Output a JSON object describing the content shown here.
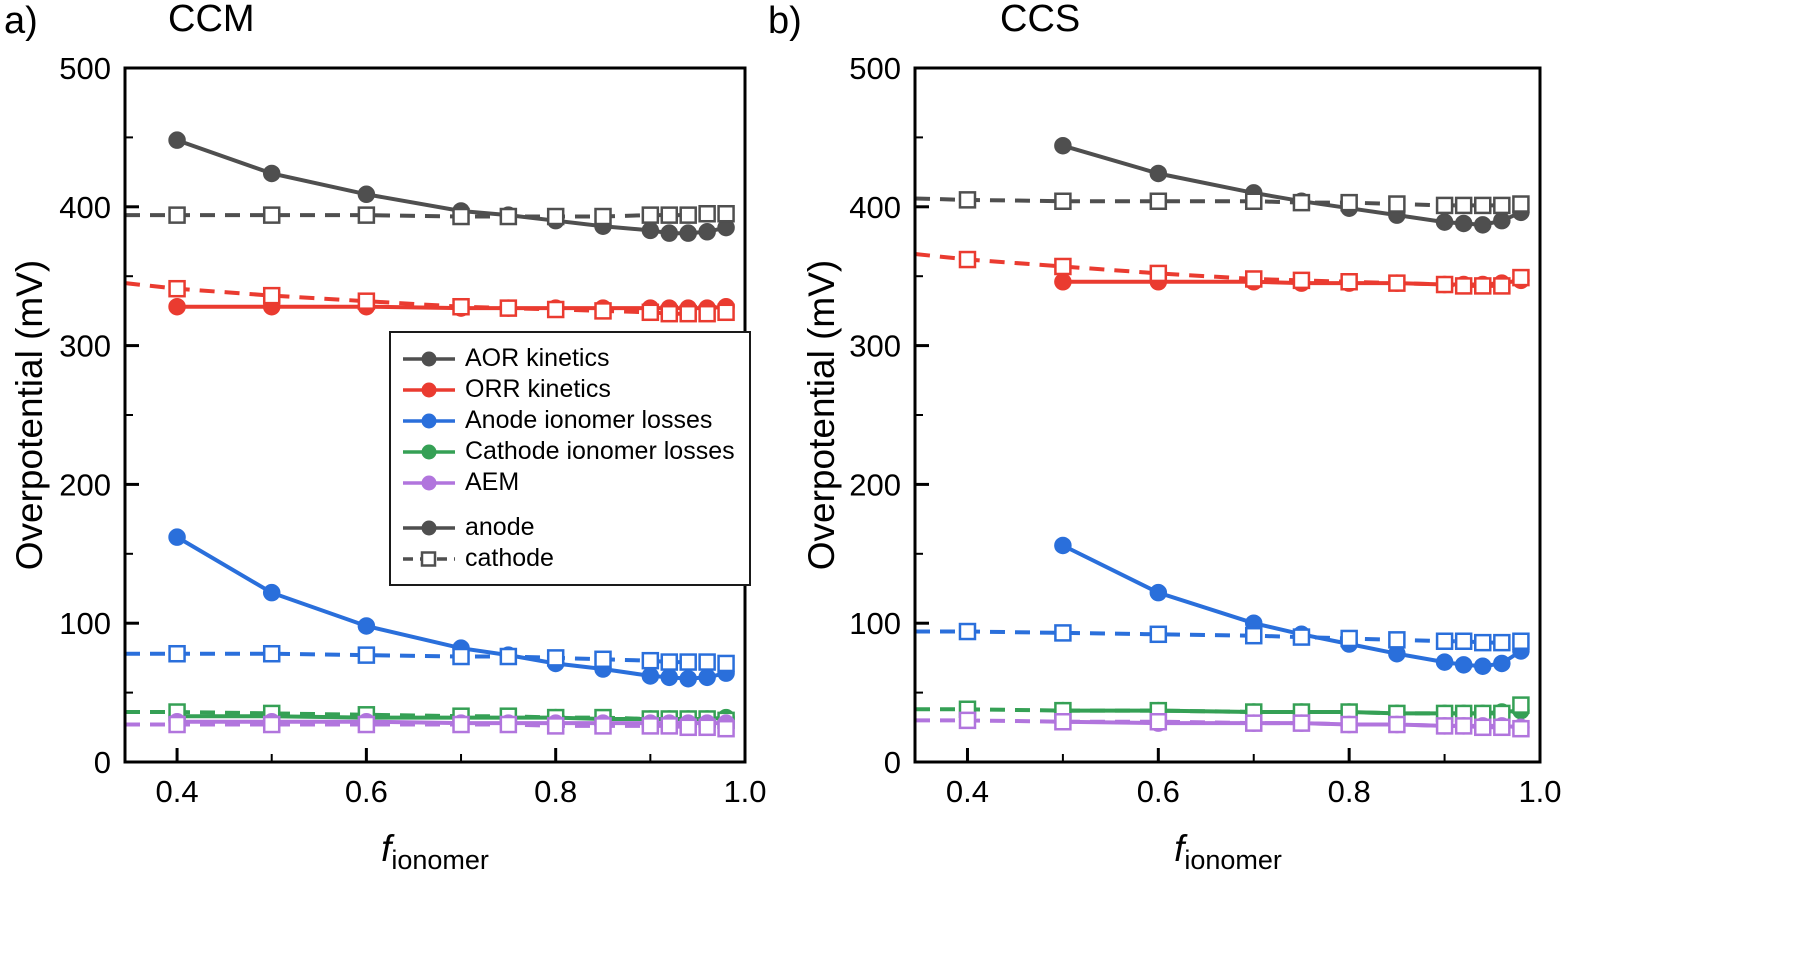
{
  "figure": {
    "background": "#ffffff",
    "panels": [
      {
        "corner_label": "a)",
        "title": "CCM"
      },
      {
        "corner_label": "b)",
        "title": "CCS"
      }
    ],
    "ylabel": "Overpotential (mV)",
    "xlabel_base": "f",
    "xlabel_sub": "ionomer"
  },
  "legend": {
    "components": [
      {
        "label": "AOR kinetics",
        "color": "#4f4f4f"
      },
      {
        "label": "ORR kinetics",
        "color": "#ea3b30"
      },
      {
        "label": "Anode ionomer losses",
        "color": "#2a6fdb"
      },
      {
        "label": "Cathode ionomer losses",
        "color": "#35a055"
      },
      {
        "label": "AEM",
        "color": "#b175dd"
      }
    ],
    "electrodes": [
      {
        "label": "anode",
        "marker": "filled-circle",
        "line": "solid",
        "color": "#4f4f4f"
      },
      {
        "label": "cathode",
        "marker": "open-square",
        "line": "dashed",
        "color": "#4f4f4f"
      }
    ]
  },
  "chart_data": [
    {
      "type": "line",
      "title": "CCM",
      "xlabel": "f_ionomer",
      "ylabel": "Overpotential (mV)",
      "xlim": [
        0.345,
        1.0
      ],
      "ylim": [
        0,
        500
      ],
      "x_major_ticks": [
        0.4,
        0.6,
        0.8,
        1.0
      ],
      "x_minor_ticks": [
        0.5,
        0.7,
        0.9
      ],
      "y_major_step": 100,
      "y_minor_step": 50,
      "series": [
        {
          "component": "AOR kinetics",
          "electrode": "anode",
          "color": "#4f4f4f",
          "line": "solid",
          "marker": "circle",
          "x": [
            0.4,
            0.5,
            0.6,
            0.7,
            0.75,
            0.8,
            0.85,
            0.9,
            0.92,
            0.94,
            0.96,
            0.98
          ],
          "y": [
            448,
            424,
            409,
            397,
            394,
            390,
            386,
            383,
            381,
            381,
            382,
            385
          ]
        },
        {
          "component": "AOR kinetics",
          "electrode": "cathode",
          "color": "#4f4f4f",
          "line": "dashed",
          "marker": "square",
          "edge_y": 394,
          "x": [
            0.4,
            0.5,
            0.6,
            0.7,
            0.75,
            0.8,
            0.85,
            0.9,
            0.92,
            0.94,
            0.96,
            0.98
          ],
          "y": [
            394,
            394,
            394,
            393,
            393,
            393,
            393,
            394,
            394,
            394,
            395,
            395
          ]
        },
        {
          "component": "ORR kinetics",
          "electrode": "anode",
          "color": "#ea3b30",
          "line": "solid",
          "marker": "circle",
          "x": [
            0.4,
            0.5,
            0.6,
            0.7,
            0.75,
            0.8,
            0.85,
            0.9,
            0.92,
            0.94,
            0.96,
            0.98
          ],
          "y": [
            328,
            328,
            328,
            327,
            327,
            327,
            327,
            327,
            327,
            327,
            327,
            328
          ]
        },
        {
          "component": "ORR kinetics",
          "electrode": "cathode",
          "color": "#ea3b30",
          "line": "dashed",
          "marker": "square",
          "edge_y": 345,
          "x": [
            0.4,
            0.5,
            0.6,
            0.7,
            0.75,
            0.8,
            0.85,
            0.9,
            0.92,
            0.94,
            0.96,
            0.98
          ],
          "y": [
            341,
            336,
            332,
            328,
            327,
            326,
            325,
            324,
            323,
            323,
            323,
            324
          ]
        },
        {
          "component": "Anode ionomer losses",
          "electrode": "anode",
          "color": "#2a6fdb",
          "line": "solid",
          "marker": "circle",
          "x": [
            0.4,
            0.5,
            0.6,
            0.7,
            0.75,
            0.8,
            0.85,
            0.9,
            0.92,
            0.94,
            0.96,
            0.98
          ],
          "y": [
            162,
            122,
            98,
            82,
            77,
            71,
            67,
            62,
            61,
            60,
            61,
            64
          ]
        },
        {
          "component": "Anode ionomer losses",
          "electrode": "cathode",
          "color": "#2a6fdb",
          "line": "dashed",
          "marker": "square",
          "edge_y": 78,
          "x": [
            0.4,
            0.5,
            0.6,
            0.7,
            0.75,
            0.8,
            0.85,
            0.9,
            0.92,
            0.94,
            0.96,
            0.98
          ],
          "y": [
            78,
            78,
            77,
            76,
            76,
            75,
            74,
            73,
            72,
            72,
            72,
            71
          ]
        },
        {
          "component": "Cathode ionomer losses",
          "electrode": "anode",
          "color": "#35a055",
          "line": "solid",
          "marker": "circle",
          "x": [
            0.4,
            0.5,
            0.6,
            0.7,
            0.75,
            0.8,
            0.85,
            0.9,
            0.92,
            0.94,
            0.96,
            0.98
          ],
          "y": [
            33,
            33,
            32,
            32,
            32,
            32,
            31,
            31,
            31,
            31,
            31,
            32
          ]
        },
        {
          "component": "Cathode ionomer losses",
          "electrode": "cathode",
          "color": "#35a055",
          "line": "dashed",
          "marker": "square",
          "edge_y": 36,
          "x": [
            0.4,
            0.5,
            0.6,
            0.7,
            0.75,
            0.8,
            0.85,
            0.9,
            0.92,
            0.94,
            0.96,
            0.98
          ],
          "y": [
            36,
            35,
            34,
            33,
            33,
            32,
            32,
            31,
            31,
            31,
            31,
            30
          ]
        },
        {
          "component": "AEM",
          "electrode": "anode",
          "color": "#b175dd",
          "line": "solid",
          "marker": "circle",
          "x": [
            0.4,
            0.5,
            0.6,
            0.7,
            0.75,
            0.8,
            0.85,
            0.9,
            0.92,
            0.94,
            0.96,
            0.98
          ],
          "y": [
            29,
            29,
            29,
            28,
            28,
            28,
            28,
            28,
            28,
            28,
            28,
            28
          ]
        },
        {
          "component": "AEM",
          "electrode": "cathode",
          "color": "#b175dd",
          "line": "dashed",
          "marker": "square",
          "edge_y": 27,
          "x": [
            0.4,
            0.5,
            0.6,
            0.7,
            0.75,
            0.8,
            0.85,
            0.9,
            0.92,
            0.94,
            0.96,
            0.98
          ],
          "y": [
            27,
            27,
            27,
            27,
            27,
            26,
            26,
            26,
            26,
            25,
            25,
            24
          ]
        }
      ]
    },
    {
      "type": "line",
      "title": "CCS",
      "xlabel": "f_ionomer",
      "ylabel": "Overpotential (mV)",
      "xlim": [
        0.345,
        1.0
      ],
      "ylim": [
        0,
        500
      ],
      "x_major_ticks": [
        0.4,
        0.6,
        0.8,
        1.0
      ],
      "x_minor_ticks": [
        0.5,
        0.7,
        0.9
      ],
      "y_major_step": 100,
      "y_minor_step": 50,
      "series": [
        {
          "component": "AOR kinetics",
          "electrode": "anode",
          "color": "#4f4f4f",
          "line": "solid",
          "marker": "circle",
          "x": [
            0.5,
            0.6,
            0.7,
            0.75,
            0.8,
            0.85,
            0.9,
            0.92,
            0.94,
            0.96,
            0.98
          ],
          "y": [
            444,
            424,
            410,
            404,
            399,
            394,
            389,
            388,
            387,
            390,
            396
          ]
        },
        {
          "component": "AOR kinetics",
          "electrode": "cathode",
          "color": "#4f4f4f",
          "line": "dashed",
          "marker": "square",
          "edge_y": 406,
          "x": [
            0.4,
            0.5,
            0.6,
            0.7,
            0.75,
            0.8,
            0.85,
            0.9,
            0.92,
            0.94,
            0.96,
            0.98
          ],
          "y": [
            405,
            404,
            404,
            404,
            403,
            403,
            402,
            401,
            401,
            401,
            401,
            402
          ]
        },
        {
          "component": "ORR kinetics",
          "electrode": "anode",
          "color": "#ea3b30",
          "line": "solid",
          "marker": "circle",
          "x": [
            0.5,
            0.6,
            0.7,
            0.75,
            0.8,
            0.85,
            0.9,
            0.92,
            0.94,
            0.96,
            0.98
          ],
          "y": [
            346,
            346,
            346,
            345,
            345,
            345,
            344,
            344,
            344,
            345,
            347
          ]
        },
        {
          "component": "ORR kinetics",
          "electrode": "cathode",
          "color": "#ea3b30",
          "line": "dashed",
          "marker": "square",
          "edge_y": 366,
          "x": [
            0.4,
            0.5,
            0.6,
            0.7,
            0.75,
            0.8,
            0.85,
            0.9,
            0.92,
            0.94,
            0.96,
            0.98
          ],
          "y": [
            362,
            357,
            352,
            348,
            347,
            346,
            345,
            344,
            343,
            343,
            343,
            349
          ]
        },
        {
          "component": "Anode ionomer losses",
          "electrode": "anode",
          "color": "#2a6fdb",
          "line": "solid",
          "marker": "circle",
          "x": [
            0.5,
            0.6,
            0.7,
            0.75,
            0.8,
            0.85,
            0.9,
            0.92,
            0.94,
            0.96,
            0.98
          ],
          "y": [
            156,
            122,
            100,
            92,
            85,
            78,
            72,
            70,
            69,
            71,
            80
          ]
        },
        {
          "component": "Anode ionomer losses",
          "electrode": "cathode",
          "color": "#2a6fdb",
          "line": "dashed",
          "marker": "square",
          "edge_y": 94,
          "x": [
            0.4,
            0.5,
            0.6,
            0.7,
            0.75,
            0.8,
            0.85,
            0.9,
            0.92,
            0.94,
            0.96,
            0.98
          ],
          "y": [
            94,
            93,
            92,
            91,
            90,
            89,
            88,
            87,
            87,
            86,
            86,
            87
          ]
        },
        {
          "component": "Cathode ionomer losses",
          "electrode": "anode",
          "color": "#35a055",
          "line": "solid",
          "marker": "circle",
          "x": [
            0.5,
            0.6,
            0.7,
            0.75,
            0.8,
            0.85,
            0.9,
            0.92,
            0.94,
            0.96,
            0.98
          ],
          "y": [
            37,
            37,
            36,
            36,
            36,
            35,
            35,
            35,
            35,
            36,
            37
          ]
        },
        {
          "component": "Cathode ionomer losses",
          "electrode": "cathode",
          "color": "#35a055",
          "line": "dashed",
          "marker": "square",
          "edge_y": 38,
          "x": [
            0.4,
            0.5,
            0.6,
            0.7,
            0.75,
            0.8,
            0.85,
            0.9,
            0.92,
            0.94,
            0.96,
            0.98
          ],
          "y": [
            38,
            37,
            37,
            36,
            36,
            36,
            35,
            35,
            35,
            35,
            35,
            41
          ]
        },
        {
          "component": "AEM",
          "electrode": "anode",
          "color": "#b175dd",
          "line": "solid",
          "marker": "circle",
          "x": [
            0.5,
            0.6,
            0.7,
            0.75,
            0.8,
            0.85,
            0.9,
            0.92,
            0.94,
            0.96,
            0.98
          ],
          "y": [
            29,
            28,
            28,
            28,
            27,
            27,
            26,
            26,
            26,
            26,
            25
          ]
        },
        {
          "component": "AEM",
          "electrode": "cathode",
          "color": "#b175dd",
          "line": "dashed",
          "marker": "square",
          "edge_y": 30,
          "x": [
            0.4,
            0.5,
            0.6,
            0.7,
            0.75,
            0.8,
            0.85,
            0.9,
            0.92,
            0.94,
            0.96,
            0.98
          ],
          "y": [
            30,
            29,
            29,
            28,
            28,
            27,
            27,
            26,
            26,
            25,
            25,
            24
          ]
        }
      ]
    }
  ]
}
